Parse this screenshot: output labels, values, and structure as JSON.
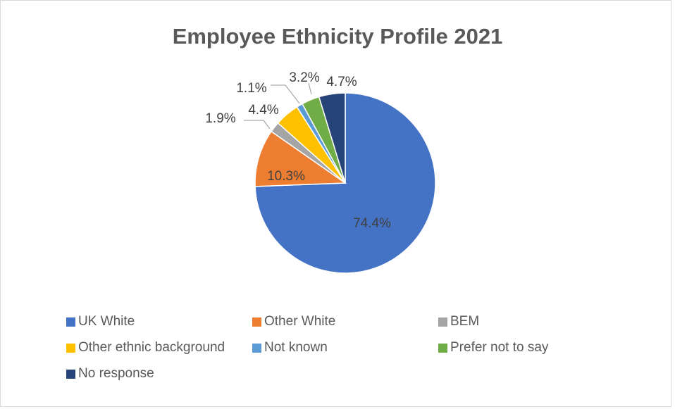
{
  "chart_data": {
    "type": "pie",
    "title": "Employee Ethnicity Profile 2021",
    "categories": [
      "UK White",
      "Other White",
      "BEM",
      "Other ethnic background",
      "Not known",
      "Prefer not to say",
      "No response"
    ],
    "values": [
      74.4,
      10.3,
      1.9,
      4.4,
      1.1,
      3.2,
      4.7
    ],
    "data_labels": [
      "74.4%",
      "10.3%",
      "1.9%",
      "4.4%",
      "1.1%",
      "3.2%",
      "4.7%"
    ],
    "colors": [
      "#4472C4",
      "#ED7D31",
      "#A5A5A5",
      "#FFC000",
      "#5B9BD5",
      "#70AD47",
      "#264478"
    ],
    "legend_position": "bottom",
    "start_angle_deg": 0,
    "direction": "clockwise"
  }
}
